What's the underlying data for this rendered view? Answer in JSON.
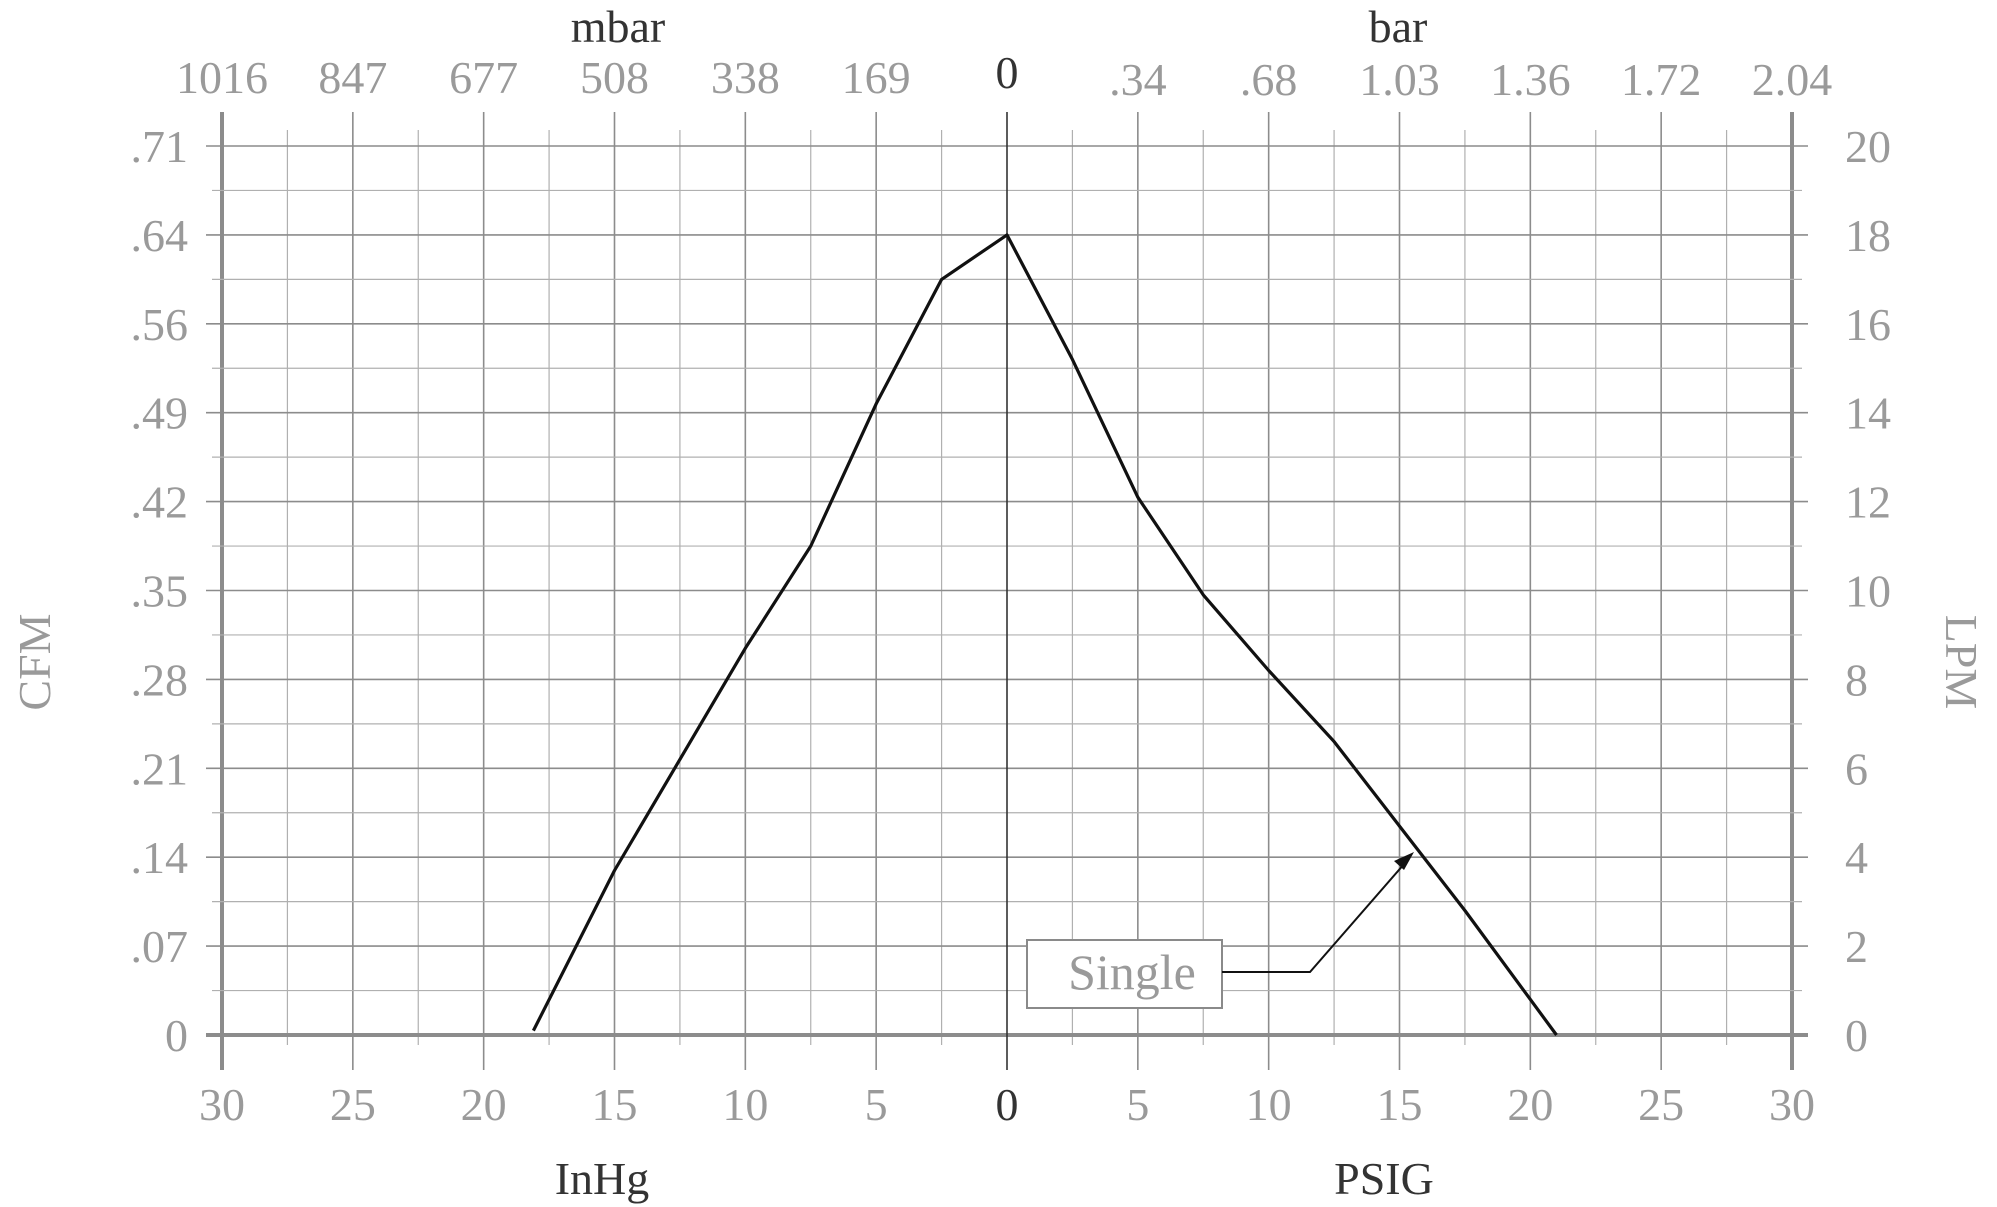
{
  "chart_data": {
    "type": "line",
    "x_zero_label": "0",
    "axes": {
      "bottom_left": {
        "unit": "InHg",
        "ticks": [
          "30",
          "25",
          "20",
          "15",
          "10",
          "5"
        ],
        "range": [
          0,
          30
        ]
      },
      "bottom_right": {
        "unit": "PSIG",
        "ticks": [
          "5",
          "10",
          "15",
          "20",
          "25",
          "30"
        ],
        "range": [
          0,
          30
        ]
      },
      "top_left": {
        "unit": "mbar",
        "ticks": [
          "1016",
          "847",
          "677",
          "508",
          "338",
          "169"
        ]
      },
      "top_right": {
        "unit": "bar",
        "ticks": [
          ".34",
          ".68",
          "1.03",
          "1.36",
          "1.72",
          "2.04"
        ]
      },
      "left": {
        "unit": "CFM",
        "ticks": [
          "0",
          ".07",
          ".14",
          ".21",
          ".28",
          ".35",
          ".42",
          ".49",
          ".56",
          ".64",
          ".71"
        ]
      },
      "right": {
        "unit": "LPM",
        "ticks": [
          "0",
          "2",
          "4",
          "6",
          "8",
          "10",
          "12",
          "14",
          "16",
          "18",
          "20"
        ],
        "range": [
          0,
          20
        ]
      }
    },
    "grid": true,
    "series": [
      {
        "name": "Single",
        "vacuum_inhg": [
          18.1,
          15,
          12,
          10,
          7.5,
          5,
          2.5,
          0
        ],
        "vacuum_flow_lpm": [
          0.1,
          3.7,
          6.7,
          8.7,
          11.0,
          14.2,
          17.0,
          18.0
        ],
        "pressure_psig": [
          0,
          2.5,
          5,
          7.5,
          10,
          12.5,
          15,
          17.5,
          21
        ],
        "pressure_flow_lpm": [
          18.0,
          15.2,
          12.1,
          9.9,
          8.2,
          6.6,
          4.7,
          2.8,
          0
        ]
      }
    ]
  }
}
